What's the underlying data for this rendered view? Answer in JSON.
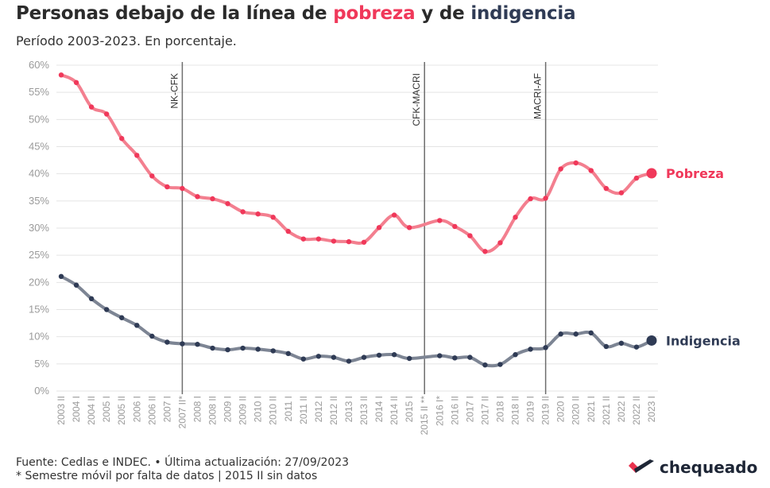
{
  "header": {
    "title_pre": "Personas debajo de la línea de ",
    "title_pov": "pobreza",
    "title_mid": " y de ",
    "title_ind": "indigencia",
    "subtitle": "Período 2003-2023. En porcentaje."
  },
  "footer": {
    "source": "Fuente: Cedlas e INDEC. • Última actualización: 27/09/2023",
    "note": "* Semestre móvil por falta de datos | 2015 II sin datos"
  },
  "brand": {
    "name": "chequeado"
  },
  "colors": {
    "pobreza": "#f37f8f",
    "pobreza_dot": "#f0385a",
    "indigencia": "#7d8594",
    "indigencia_dot": "#2f3b55",
    "grid": "#e4e4e4",
    "axis_text": "#9a9a9a"
  },
  "chart_data": {
    "type": "line",
    "categories": [
      "2003 II",
      "2004 I",
      "2004 II",
      "2005 I",
      "2005 II",
      "2006 I",
      "2006 II",
      "2007 I",
      "2007 II*",
      "2008 I",
      "2008 II",
      "2009 I",
      "2009 II",
      "2010 I",
      "2010 II",
      "2011 I",
      "2011 II",
      "2012 I",
      "2012 II",
      "2013 I",
      "2013 II",
      "2014 I",
      "2014 II",
      "2015 I",
      "2015 II **",
      "2016 I*",
      "2016 II",
      "2017 I",
      "2017 II",
      "2018 I",
      "2018 II",
      "2019 I",
      "2019 II",
      "2020 I",
      "2020 II",
      "2021 I",
      "2021 II",
      "2022 I",
      "2022 II",
      "2023 I"
    ],
    "xtick_labels": [
      "2003 II",
      "2004 I",
      "2004 II",
      "2005 I",
      "2005 II",
      "2006 I",
      "2006 II",
      "2007 I",
      "2007 II*",
      "2008 I",
      "2008 II",
      "2009 I",
      "2009 II",
      "2010 I",
      "2010 II",
      "2011 I",
      "2011 II",
      "2012 I",
      "2012 II",
      "2013 I",
      "2013 II",
      "2014 I",
      "2014 II",
      "2015 I",
      "2015 II **",
      "2016 I*",
      "2016 II",
      "2017 I",
      "2017 II",
      "2018 I",
      "2018 II",
      "2019 I",
      "2019 II",
      "2020 I",
      "2020 II",
      "2021 I",
      "2021 II",
      "2022 I",
      "2022 II",
      "2023 I"
    ],
    "series": [
      {
        "name": "Pobreza",
        "values": [
          58.2,
          56.8,
          52.3,
          51.0,
          46.5,
          43.4,
          39.6,
          37.6,
          37.3,
          35.8,
          35.4,
          34.5,
          33.0,
          32.6,
          32.0,
          29.4,
          28.0,
          28.0,
          27.6,
          27.5,
          27.4,
          30.1,
          32.4,
          30.1,
          null,
          31.4,
          30.3,
          28.6,
          25.7,
          27.3,
          32.0,
          35.4,
          35.5,
          40.9,
          42.0,
          40.6,
          37.3,
          36.5,
          39.2,
          40.1
        ]
      },
      {
        "name": "Indigencia",
        "values": [
          21.1,
          19.5,
          17.0,
          15.0,
          13.5,
          12.1,
          10.1,
          9.0,
          8.7,
          8.6,
          7.9,
          7.6,
          7.9,
          7.7,
          7.4,
          6.9,
          5.9,
          6.4,
          6.2,
          5.5,
          6.2,
          6.6,
          6.7,
          6.0,
          null,
          6.5,
          6.1,
          6.2,
          4.8,
          4.9,
          6.7,
          7.7,
          8.0,
          10.5,
          10.5,
          10.7,
          8.2,
          8.8,
          8.1,
          9.3
        ]
      }
    ],
    "ylim": [
      0,
      60
    ],
    "yticks": [
      0,
      5,
      10,
      15,
      20,
      25,
      30,
      35,
      40,
      45,
      50,
      55,
      60
    ],
    "ytick_suffix": "%",
    "events": [
      {
        "label": "NK-CFK",
        "category": "2007 II*"
      },
      {
        "label": "CFK-MACRI",
        "category": "2015 II **"
      },
      {
        "label": "MACRI-AF",
        "category": "2019 II"
      }
    ],
    "grid": true,
    "legend": "end-labels"
  }
}
